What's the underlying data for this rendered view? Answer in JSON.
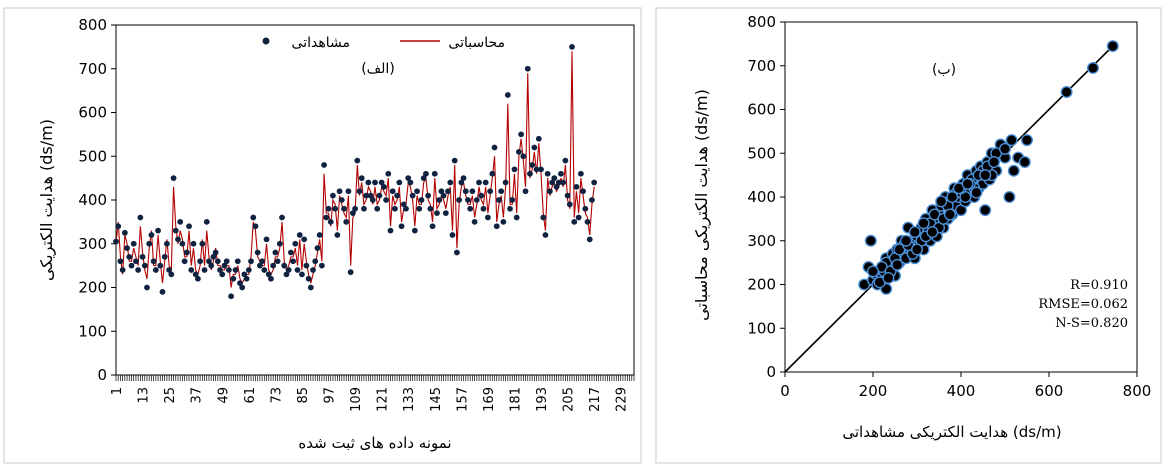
{
  "chart_data": [
    {
      "type": "line",
      "panel_label": "(الف)",
      "xlabel": "نمونه داده های ثبت شده",
      "ylabel": "هدایت الکتریکی (ds/m)",
      "ylim": [
        0,
        800
      ],
      "yticks": [
        0,
        100,
        200,
        300,
        400,
        500,
        600,
        700,
        800
      ],
      "xlim": [
        1,
        235
      ],
      "xticks": [
        1,
        13,
        25,
        37,
        49,
        61,
        73,
        85,
        97,
        109,
        121,
        133,
        145,
        157,
        169,
        181,
        193,
        205,
        217,
        229
      ],
      "grid": false,
      "legend": "top-center",
      "series": [
        {
          "name": "مشاهداتی",
          "style": "markers",
          "color": "#0f2340",
          "values": [
            305,
            340,
            260,
            240,
            325,
            290,
            270,
            250,
            300,
            260,
            240,
            360,
            270,
            250,
            200,
            300,
            320,
            260,
            240,
            330,
            250,
            190,
            270,
            300,
            240,
            230,
            450,
            330,
            310,
            350,
            300,
            260,
            280,
            340,
            240,
            300,
            230,
            220,
            260,
            300,
            240,
            350,
            260,
            250,
            270,
            280,
            260,
            240,
            230,
            250,
            260,
            240,
            180,
            220,
            240,
            260,
            210,
            200,
            230,
            220,
            240,
            260,
            360,
            340,
            280,
            250,
            260,
            240,
            310,
            230,
            220,
            250,
            280,
            260,
            300,
            360,
            250,
            230,
            240,
            280,
            260,
            300,
            240,
            320,
            230,
            310,
            250,
            220,
            200,
            240,
            260,
            290,
            320,
            250,
            480,
            360,
            380,
            350,
            410,
            380,
            320,
            420,
            400,
            380,
            350,
            420,
            235,
            370,
            380,
            490,
            420,
            450,
            380,
            410,
            440,
            410,
            400,
            440,
            380,
            410,
            440,
            430,
            400,
            460,
            330,
            420,
            380,
            410,
            440,
            340,
            390,
            380,
            450,
            440,
            410,
            330,
            420,
            380,
            400,
            450,
            460,
            410,
            380,
            340,
            460,
            370,
            400,
            420,
            410,
            370,
            420,
            440,
            320,
            490,
            280,
            400,
            440,
            450,
            420,
            400,
            380,
            420,
            350,
            400,
            440,
            410,
            380,
            440,
            360,
            420,
            460,
            520,
            340,
            400,
            420,
            350,
            440,
            640,
            380,
            400,
            470,
            360,
            510,
            550,
            500,
            420,
            700,
            460,
            480,
            520,
            470,
            540,
            470,
            360,
            320,
            460,
            420,
            440,
            450,
            430,
            440,
            460,
            440,
            490,
            410,
            390,
            750,
            350,
            430,
            360,
            460,
            420,
            380,
            350,
            310,
            400,
            440
          ]
        },
        {
          "name": "محاسباتی",
          "style": "line",
          "color": "#b30000",
          "values": [
            300,
            350,
            270,
            230,
            320,
            300,
            260,
            260,
            290,
            270,
            250,
            340,
            280,
            240,
            220,
            290,
            330,
            250,
            250,
            320,
            260,
            210,
            260,
            310,
            250,
            240,
            430,
            340,
            300,
            330,
            310,
            270,
            270,
            330,
            250,
            290,
            240,
            230,
            250,
            310,
            250,
            330,
            270,
            240,
            260,
            290,
            250,
            250,
            240,
            240,
            250,
            250,
            200,
            230,
            230,
            250,
            220,
            210,
            220,
            230,
            230,
            270,
            350,
            330,
            270,
            260,
            250,
            250,
            300,
            240,
            230,
            240,
            270,
            270,
            290,
            350,
            260,
            240,
            250,
            270,
            270,
            290,
            250,
            310,
            240,
            300,
            260,
            230,
            210,
            230,
            250,
            280,
            310,
            260,
            460,
            370,
            370,
            340,
            400,
            390,
            330,
            410,
            390,
            370,
            360,
            410,
            250,
            360,
            370,
            480,
            410,
            440,
            390,
            400,
            430,
            420,
            390,
            430,
            390,
            400,
            430,
            420,
            410,
            450,
            340,
            410,
            390,
            400,
            430,
            350,
            380,
            390,
            440,
            430,
            400,
            340,
            410,
            390,
            390,
            440,
            450,
            400,
            390,
            350,
            450,
            380,
            390,
            410,
            400,
            380,
            410,
            430,
            330,
            480,
            290,
            390,
            430,
            440,
            410,
            390,
            390,
            410,
            360,
            390,
            430,
            400,
            390,
            430,
            370,
            410,
            450,
            500,
            350,
            390,
            410,
            360,
            430,
            620,
            390,
            390,
            460,
            370,
            500,
            540,
            490,
            430,
            690,
            450,
            470,
            510,
            460,
            530,
            460,
            370,
            330,
            450,
            410,
            430,
            440,
            420,
            430,
            450,
            430,
            480,
            400,
            380,
            740,
            360,
            420,
            370,
            450,
            410,
            370,
            360,
            320,
            390,
            430
          ]
        }
      ]
    },
    {
      "type": "scatter",
      "panel_label": "(ب)",
      "xlabel": "هدایت الکتریکی مشاهداتی (ds/m)",
      "ylabel": "هدایت الکتریکی محاسباتی (ds/m)",
      "xlim": [
        0,
        800
      ],
      "ylim": [
        0,
        800
      ],
      "xticks": [
        0,
        200,
        400,
        600,
        800
      ],
      "yticks": [
        0,
        100,
        200,
        300,
        400,
        500,
        600,
        700,
        800
      ],
      "grid": false,
      "fit_line": [
        [
          0,
          0
        ],
        [
          750,
          750
        ]
      ],
      "stats": [
        "R=0.910",
        "RMSE=0.062",
        "N-S=0.820"
      ],
      "points": [
        [
          180,
          200
        ],
        [
          195,
          300
        ],
        [
          190,
          240
        ],
        [
          200,
          210
        ],
        [
          205,
          225
        ],
        [
          210,
          200
        ],
        [
          220,
          215
        ],
        [
          225,
          230
        ],
        [
          230,
          190
        ],
        [
          230,
          260
        ],
        [
          240,
          240
        ],
        [
          245,
          270
        ],
        [
          250,
          220
        ],
        [
          255,
          280
        ],
        [
          260,
          250
        ],
        [
          265,
          300
        ],
        [
          270,
          270
        ],
        [
          275,
          260
        ],
        [
          280,
          330
        ],
        [
          285,
          280
        ],
        [
          290,
          300
        ],
        [
          295,
          260
        ],
        [
          300,
          310
        ],
        [
          305,
          290
        ],
        [
          310,
          330
        ],
        [
          315,
          280
        ],
        [
          320,
          350
        ],
        [
          325,
          320
        ],
        [
          330,
          300
        ],
        [
          335,
          370
        ],
        [
          340,
          340
        ],
        [
          345,
          310
        ],
        [
          350,
          360
        ],
        [
          355,
          380
        ],
        [
          360,
          330
        ],
        [
          365,
          400
        ],
        [
          370,
          350
        ],
        [
          375,
          390
        ],
        [
          380,
          360
        ],
        [
          385,
          420
        ],
        [
          390,
          380
        ],
        [
          395,
          400
        ],
        [
          400,
          370
        ],
        [
          405,
          430
        ],
        [
          410,
          390
        ],
        [
          415,
          450
        ],
        [
          420,
          410
        ],
        [
          425,
          440
        ],
        [
          430,
          400
        ],
        [
          435,
          460
        ],
        [
          440,
          420
        ],
        [
          445,
          470
        ],
        [
          450,
          430
        ],
        [
          455,
          370
        ],
        [
          460,
          480
        ],
        [
          465,
          440
        ],
        [
          470,
          500
        ],
        [
          480,
          460
        ],
        [
          490,
          520
        ],
        [
          500,
          490
        ],
        [
          510,
          400
        ],
        [
          515,
          530
        ],
        [
          520,
          460
        ],
        [
          530,
          490
        ],
        [
          545,
          480
        ],
        [
          550,
          530
        ],
        [
          640,
          640
        ],
        [
          700,
          695
        ],
        [
          745,
          745
        ],
        [
          230,
          250
        ],
        [
          250,
          260
        ],
        [
          270,
          290
        ],
        [
          290,
          270
        ],
        [
          310,
          300
        ],
        [
          330,
          340
        ],
        [
          350,
          330
        ],
        [
          370,
          380
        ],
        [
          390,
          410
        ],
        [
          410,
          400
        ],
        [
          430,
          420
        ],
        [
          450,
          460
        ],
        [
          470,
          450
        ],
        [
          220,
          240
        ],
        [
          240,
          230
        ],
        [
          260,
          280
        ],
        [
          280,
          290
        ],
        [
          300,
          280
        ],
        [
          320,
          310
        ],
        [
          340,
          360
        ],
        [
          360,
          350
        ],
        [
          380,
          400
        ],
        [
          400,
          420
        ],
        [
          420,
          430
        ],
        [
          440,
          450
        ],
        [
          460,
          470
        ],
        [
          480,
          500
        ],
        [
          500,
          510
        ],
        [
          200,
          230
        ],
        [
          215,
          205
        ],
        [
          235,
          215
        ],
        [
          255,
          245
        ],
        [
          275,
          300
        ],
        [
          295,
          320
        ],
        [
          315,
          340
        ],
        [
          335,
          320
        ],
        [
          355,
          390
        ],
        [
          375,
          360
        ],
        [
          395,
          420
        ],
        [
          415,
          430
        ],
        [
          435,
          410
        ],
        [
          455,
          450
        ],
        [
          475,
          480
        ]
      ]
    }
  ]
}
